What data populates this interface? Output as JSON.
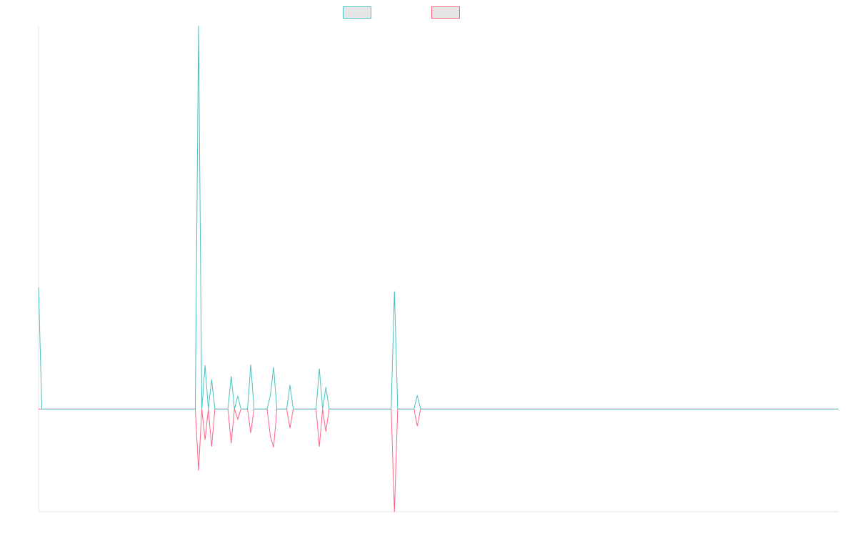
{
  "chart_data": {
    "type": "line",
    "title": "",
    "xlabel": "",
    "ylabel": "",
    "grid": false,
    "legend_position": "top-center",
    "ylim": [
      -150,
      560
    ],
    "x_count": 246,
    "series": [
      {
        "name": "",
        "color": "#4bc0c0",
        "fill": "#e6e6e6",
        "points": [
          [
            0,
            178
          ],
          [
            1,
            0
          ],
          [
            48,
            0
          ],
          [
            49,
            560
          ],
          [
            50,
            0
          ],
          [
            51,
            64
          ],
          [
            52,
            0
          ],
          [
            53,
            43
          ],
          [
            54,
            0
          ],
          [
            58,
            0
          ],
          [
            59,
            48
          ],
          [
            60,
            0
          ],
          [
            61,
            19
          ],
          [
            62,
            0
          ],
          [
            64,
            0
          ],
          [
            65,
            65
          ],
          [
            66,
            0
          ],
          [
            70,
            0
          ],
          [
            71,
            20
          ],
          [
            72,
            61
          ],
          [
            73,
            0
          ],
          [
            76,
            0
          ],
          [
            77,
            35
          ],
          [
            78,
            0
          ],
          [
            85,
            0
          ],
          [
            86,
            59
          ],
          [
            87,
            0
          ],
          [
            88,
            32
          ],
          [
            89,
            0
          ],
          [
            108,
            0
          ],
          [
            109,
            172
          ],
          [
            110,
            0
          ],
          [
            115,
            0
          ],
          [
            116,
            20
          ],
          [
            117,
            0
          ],
          [
            245,
            0
          ]
        ]
      },
      {
        "name": "",
        "color": "#ff6384",
        "fill": "#e6e6e6",
        "points": [
          [
            0,
            0
          ],
          [
            1,
            0
          ],
          [
            48,
            0
          ],
          [
            49,
            -90
          ],
          [
            50,
            0
          ],
          [
            51,
            -45
          ],
          [
            52,
            0
          ],
          [
            53,
            -55
          ],
          [
            54,
            0
          ],
          [
            58,
            0
          ],
          [
            59,
            -50
          ],
          [
            60,
            0
          ],
          [
            61,
            -15
          ],
          [
            62,
            0
          ],
          [
            64,
            0
          ],
          [
            65,
            -35
          ],
          [
            66,
            0
          ],
          [
            70,
            0
          ],
          [
            71,
            -40
          ],
          [
            72,
            -56
          ],
          [
            73,
            0
          ],
          [
            76,
            0
          ],
          [
            77,
            -28
          ],
          [
            78,
            0
          ],
          [
            85,
            0
          ],
          [
            86,
            -55
          ],
          [
            87,
            0
          ],
          [
            88,
            -33
          ],
          [
            89,
            0
          ],
          [
            108,
            0
          ],
          [
            109,
            -150
          ],
          [
            110,
            0
          ],
          [
            115,
            0
          ],
          [
            116,
            -25
          ],
          [
            117,
            0
          ],
          [
            245,
            0
          ]
        ]
      }
    ]
  }
}
